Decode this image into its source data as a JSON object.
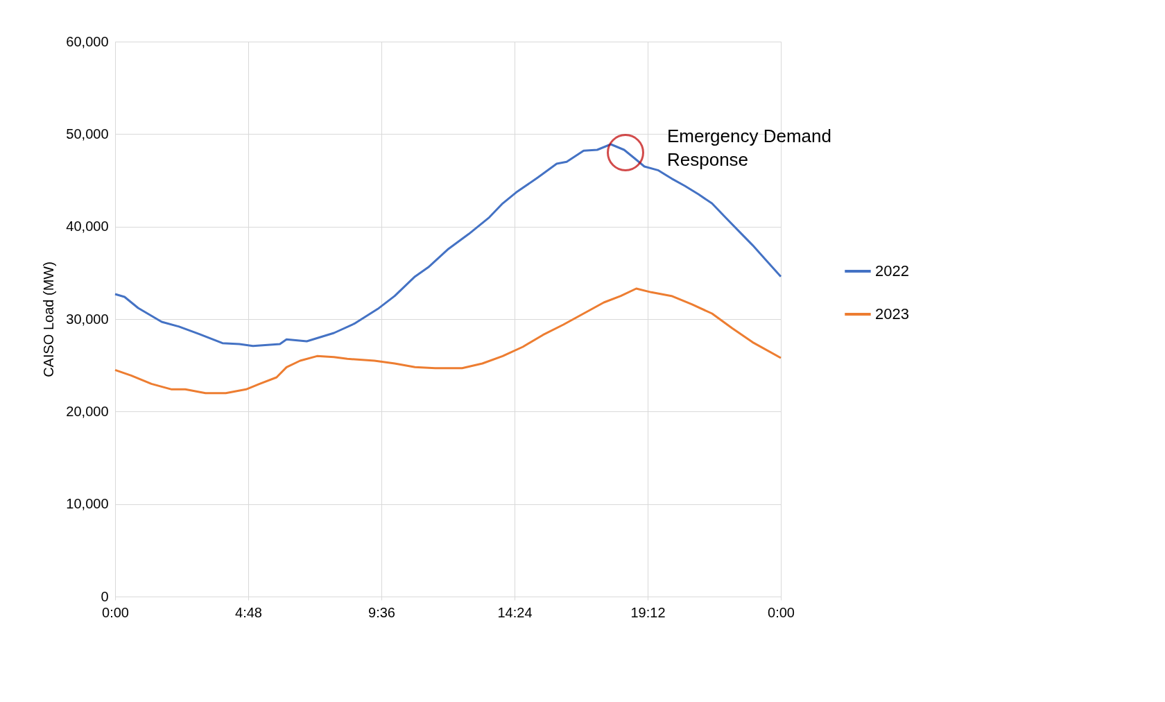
{
  "chart_data": {
    "type": "line",
    "ylabel": "CAISO Load (MW)",
    "xlim": [
      0,
      24
    ],
    "xticks": [
      {
        "value": 0,
        "label": "0:00"
      },
      {
        "value": 4.8,
        "label": "4:48"
      },
      {
        "value": 9.6,
        "label": "9:36"
      },
      {
        "value": 14.4,
        "label": "14:24"
      },
      {
        "value": 19.2,
        "label": "19:12"
      },
      {
        "value": 24,
        "label": "0:00"
      }
    ],
    "ylim": [
      0,
      60000
    ],
    "yticks": [
      0,
      {
        "value": 10000,
        "label": "10,000"
      },
      {
        "value": 20000,
        "label": "20,000"
      },
      {
        "value": 30000,
        "label": "30,000"
      },
      {
        "value": 40000,
        "label": "40,000"
      },
      {
        "value": 50000,
        "label": "50,000"
      },
      {
        "value": 60000,
        "label": "60,000"
      }
    ],
    "grid": true,
    "legend": "right",
    "line_style": "solid",
    "marker": "none",
    "annotations": [
      {
        "text": "Emergency Demand Response",
        "x": 18.4,
        "y": 48000
      }
    ],
    "series": [
      {
        "name": "2022",
        "color": "#4472c4",
        "x": [
          0,
          0.34,
          0.83,
          1.68,
          2.29,
          3.02,
          3.87,
          4.48,
          4.97,
          5.94,
          6.18,
          6.91,
          7.89,
          8.62,
          9.47,
          10.08,
          10.81,
          11.29,
          12.02,
          12.75,
          13.49,
          13.97,
          14.46,
          15.19,
          15.92,
          16.28,
          16.89,
          17.38,
          17.87,
          18.35,
          18.72,
          19.08,
          19.57,
          20.06,
          20.54,
          21.03,
          21.52,
          22.0,
          22.49,
          22.98,
          23.46,
          24
        ],
        "values": [
          32700,
          32400,
          31200,
          29700,
          29200,
          28400,
          27400,
          27300,
          27100,
          27300,
          27800,
          27600,
          28500,
          29500,
          31100,
          32500,
          34600,
          35600,
          37600,
          39200,
          41000,
          42500,
          43700,
          45200,
          46800,
          47000,
          48200,
          48300,
          48900,
          48300,
          47400,
          46500,
          46100,
          45200,
          44400,
          43500,
          42500,
          41000,
          39500,
          38000,
          36400,
          34600
        ]
      },
      {
        "name": "2023",
        "color": "#ed7d31",
        "x": [
          0,
          0.58,
          1.31,
          2.04,
          2.53,
          3.26,
          3.99,
          4.72,
          5.21,
          5.82,
          6.18,
          6.67,
          7.28,
          7.89,
          8.37,
          9.35,
          10.08,
          10.81,
          11.54,
          12.51,
          13.24,
          13.97,
          14.7,
          15.43,
          16.16,
          16.89,
          17.62,
          18.23,
          18.79,
          19.33,
          20.06,
          20.79,
          21.52,
          22.25,
          22.98,
          24
        ],
        "values": [
          24500,
          23900,
          23000,
          22400,
          22400,
          22000,
          22000,
          22400,
          23000,
          23700,
          24800,
          25500,
          26000,
          25900,
          25700,
          25500,
          25200,
          24800,
          24700,
          24700,
          25200,
          26000,
          27000,
          28300,
          29400,
          30600,
          31800,
          32500,
          33300,
          32900,
          32500,
          31600,
          30600,
          29000,
          27500,
          25800
        ]
      }
    ]
  }
}
